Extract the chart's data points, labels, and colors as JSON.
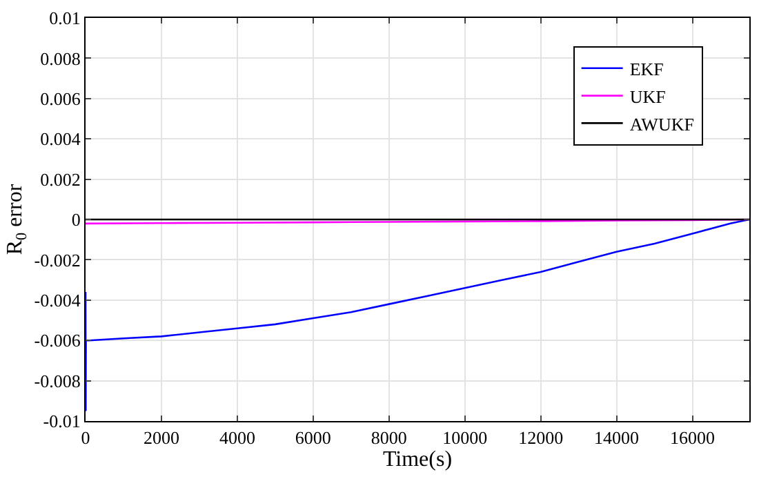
{
  "chart_data": {
    "type": "line",
    "xlabel": "Time(s)",
    "ylabel": "R$_{0}$ error",
    "xlim": [
      0,
      17500
    ],
    "xticks": [
      0,
      2000,
      4000,
      6000,
      8000,
      10000,
      12000,
      14000,
      16000
    ],
    "ylim": [
      -0.01,
      0.01
    ],
    "yticks": [
      -0.01,
      -0.008,
      -0.006,
      -0.004,
      -0.002,
      0,
      0.002,
      0.004,
      0.006,
      0.008,
      0.01
    ],
    "grid": true,
    "legend": "top right",
    "marker": "none",
    "line_style": "solid",
    "series": [
      {
        "name": "EKF",
        "color": "#0000ff",
        "x": [
          0,
          5,
          10,
          100,
          1000,
          2000,
          3000,
          4000,
          5000,
          6000,
          7000,
          8000,
          9000,
          10000,
          11000,
          12000,
          13000,
          14000,
          15000,
          16000,
          17000,
          17500
        ],
        "values": [
          -0.0036,
          -0.0095,
          -0.006,
          -0.006,
          -0.0059,
          -0.0058,
          -0.0056,
          -0.0054,
          -0.0052,
          -0.0049,
          -0.0046,
          -0.0042,
          -0.0038,
          -0.0034,
          -0.003,
          -0.0026,
          -0.0021,
          -0.0016,
          -0.0012,
          -0.0007,
          -0.0002,
          0
        ]
      },
      {
        "name": "UKF",
        "color": "#ff00ff",
        "x": [
          0,
          2000,
          4000,
          6000,
          8000,
          10000,
          12000,
          14000,
          16000,
          17500
        ],
        "values": [
          -0.0002,
          -0.00018,
          -0.00016,
          -0.00014,
          -0.00012,
          -0.0001,
          -8e-05,
          -5e-05,
          -3e-05,
          0
        ]
      },
      {
        "name": "AWUKF",
        "color": "#000000",
        "x": [
          0,
          4000,
          8000,
          12000,
          17500
        ],
        "values": [
          0,
          0,
          0,
          0,
          0
        ]
      }
    ]
  }
}
